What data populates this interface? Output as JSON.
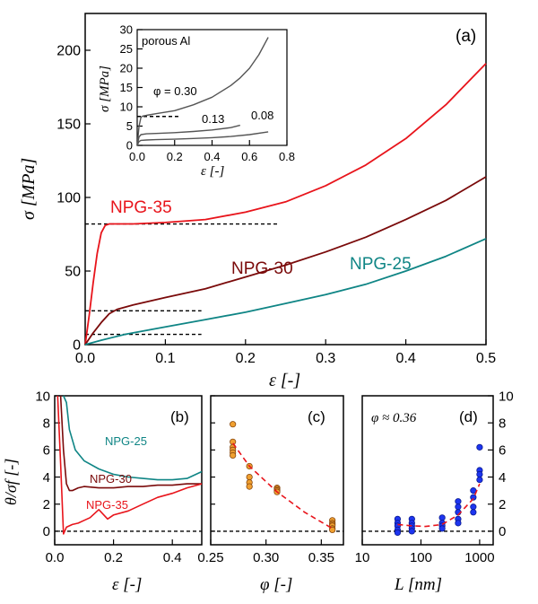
{
  "chart_data": [
    {
      "id": "a",
      "type": "line",
      "panel_label": "(a)",
      "xlabel": "ε [-]",
      "ylabel": "σ [MPa]",
      "xlim": [
        0,
        0.5
      ],
      "ylim": [
        0,
        225
      ],
      "xticks": [
        0.0,
        0.1,
        0.2,
        0.3,
        0.4,
        0.5
      ],
      "xtick_labels": [
        "0.0",
        "0.1",
        "0.2",
        "0.3",
        "0.4",
        "0.5"
      ],
      "yticks": [
        0,
        50,
        100,
        150,
        200
      ],
      "ytick_labels": [
        "0",
        "50",
        "100",
        "150",
        "200"
      ],
      "series": [
        {
          "name": "NPG-35",
          "color": "#e8141b",
          "x": [
            0.0,
            0.005,
            0.01,
            0.015,
            0.02,
            0.025,
            0.03,
            0.04,
            0.06,
            0.1,
            0.15,
            0.2,
            0.25,
            0.3,
            0.35,
            0.4,
            0.45,
            0.5
          ],
          "y": [
            0,
            20,
            42,
            62,
            76,
            81,
            82,
            82,
            82,
            83,
            85,
            90,
            97,
            108,
            122,
            140,
            163,
            191
          ]
        },
        {
          "name": "NPG-30",
          "color": "#7a0a0a",
          "x": [
            0.0,
            0.01,
            0.02,
            0.03,
            0.04,
            0.06,
            0.1,
            0.15,
            0.2,
            0.25,
            0.3,
            0.35,
            0.4,
            0.45,
            0.5
          ],
          "y": [
            0,
            8,
            15,
            21,
            24,
            27,
            32,
            38,
            46,
            54,
            63,
            73,
            85,
            98,
            114
          ]
        },
        {
          "name": "NPG-25",
          "color": "#0f8585",
          "x": [
            0.0,
            0.02,
            0.05,
            0.1,
            0.15,
            0.2,
            0.25,
            0.3,
            0.35,
            0.4,
            0.45,
            0.5
          ],
          "y": [
            0,
            3,
            7,
            12,
            17,
            22,
            28,
            34,
            41,
            50,
            60,
            72
          ]
        }
      ],
      "reference_lines": [
        {
          "y": 82,
          "x": [
            0.0,
            0.24
          ]
        },
        {
          "y": 23,
          "x": [
            0.0,
            0.145
          ]
        },
        {
          "y": 7,
          "x": [
            0.0,
            0.145
          ]
        }
      ],
      "annotations": [
        "NPG-35",
        "NPG-30",
        "NPG-25"
      ]
    },
    {
      "id": "inset",
      "type": "line",
      "title": "porous Al",
      "xlabel": "ε [-]",
      "ylabel": "σ [MPa]",
      "xlim": [
        0,
        0.8
      ],
      "ylim": [
        0,
        30
      ],
      "xticks": [
        0.0,
        0.2,
        0.4,
        0.6,
        0.8
      ],
      "xtick_labels": [
        "0.0",
        "0.2",
        "0.4",
        "0.6",
        "0.8"
      ],
      "yticks": [
        0,
        5,
        10,
        15,
        20,
        25,
        30
      ],
      "ytick_labels": [
        "0",
        "5",
        "10",
        "15",
        "20",
        "25",
        "30"
      ],
      "series": [
        {
          "label": "φ = 0.30",
          "color": "#555555",
          "x": [
            0.0,
            0.01,
            0.02,
            0.03,
            0.05,
            0.1,
            0.2,
            0.3,
            0.4,
            0.5,
            0.55,
            0.6,
            0.65,
            0.7
          ],
          "y": [
            0,
            5,
            7.3,
            7.6,
            7.8,
            8.2,
            9.0,
            10.5,
            12.5,
            15.5,
            17.5,
            20,
            23.5,
            28
          ]
        },
        {
          "label": "0.13",
          "color": "#555555",
          "x": [
            0.0,
            0.01,
            0.02,
            0.05,
            0.1,
            0.2,
            0.3,
            0.4,
            0.5,
            0.55
          ],
          "y": [
            0,
            2.2,
            2.8,
            3.0,
            3.1,
            3.3,
            3.6,
            4.0,
            4.6,
            5.2
          ]
        },
        {
          "label": "0.08",
          "color": "#555555",
          "x": [
            0.0,
            0.01,
            0.02,
            0.05,
            0.1,
            0.2,
            0.3,
            0.4,
            0.5,
            0.6,
            0.7
          ],
          "y": [
            0,
            1.0,
            1.3,
            1.4,
            1.5,
            1.6,
            1.8,
            2.0,
            2.3,
            2.8,
            3.5
          ]
        }
      ],
      "reference_lines": [
        {
          "y": 7.5,
          "x": [
            0.0,
            0.22
          ]
        }
      ],
      "annotations": [
        "φ = 0.30",
        "0.13",
        "0.08"
      ]
    },
    {
      "id": "b",
      "type": "line",
      "panel_label": "(b)",
      "xlabel": "ε [-]",
      "ylabel": "θ/σf [-]",
      "xlim": [
        0,
        0.5
      ],
      "ylim": [
        -1,
        10
      ],
      "xticks": [
        0.0,
        0.2,
        0.4
      ],
      "xtick_labels": [
        "0.0",
        "0.2",
        "0.4"
      ],
      "yticks": [
        0,
        2,
        4,
        6,
        8,
        10
      ],
      "ytick_labels": [
        "0",
        "2",
        "4",
        "6",
        "8",
        "10"
      ],
      "series": [
        {
          "name": "NPG-25",
          "color": "#0f8585",
          "x": [
            0.03,
            0.04,
            0.05,
            0.07,
            0.1,
            0.15,
            0.2,
            0.25,
            0.3,
            0.35,
            0.4,
            0.45,
            0.5
          ],
          "y": [
            10,
            9.5,
            7.5,
            6.0,
            5.2,
            4.6,
            4.2,
            4.0,
            3.9,
            3.8,
            3.8,
            3.9,
            4.4
          ]
        },
        {
          "name": "NPG-30",
          "color": "#7a0a0a",
          "x": [
            0.02,
            0.03,
            0.04,
            0.05,
            0.06,
            0.08,
            0.1,
            0.15,
            0.2,
            0.25,
            0.3,
            0.35,
            0.4,
            0.45,
            0.5
          ],
          "y": [
            10,
            6.0,
            3.5,
            3.0,
            3.0,
            3.2,
            3.3,
            3.2,
            3.2,
            3.3,
            3.3,
            3.4,
            3.4,
            3.5,
            3.5
          ]
        },
        {
          "name": "NPG-35",
          "color": "#e8141b",
          "x": [
            0.01,
            0.02,
            0.03,
            0.04,
            0.06,
            0.08,
            0.1,
            0.12,
            0.15,
            0.18,
            0.2,
            0.25,
            0.3,
            0.35,
            0.4,
            0.45,
            0.5
          ],
          "y": [
            10,
            5.0,
            -0.2,
            0.3,
            0.5,
            0.6,
            0.8,
            1.0,
            1.6,
            0.9,
            1.2,
            1.5,
            2.0,
            2.5,
            2.8,
            3.2,
            3.5
          ]
        }
      ],
      "reference_lines": [
        {
          "y": 0
        }
      ],
      "annotations": [
        "NPG-25",
        "NPG-30",
        "NPG-35"
      ]
    },
    {
      "id": "c",
      "type": "scatter",
      "panel_label": "(c)",
      "xlabel": "φ [-]",
      "xlim": [
        0.25,
        0.37
      ],
      "ylim": [
        -1,
        10
      ],
      "xticks": [
        0.25,
        0.3,
        0.35
      ],
      "xtick_labels": [
        "0.25",
        "0.30",
        "0.35"
      ],
      "points": {
        "color": "#f0a030",
        "x": [
          0.27,
          0.27,
          0.27,
          0.27,
          0.27,
          0.27,
          0.285,
          0.285,
          0.285,
          0.285,
          0.31,
          0.31,
          0.31,
          0.31,
          0.36,
          0.36,
          0.36,
          0.36,
          0.36,
          0.36
        ],
        "y": [
          7.9,
          6.6,
          6.2,
          6.0,
          5.8,
          5.6,
          4.8,
          4.0,
          3.6,
          3.3,
          3.2,
          3.1,
          3.0,
          2.9,
          0.8,
          0.6,
          0.5,
          0.4,
          0.2,
          0.1
        ]
      },
      "fit": {
        "color": "#e8141b",
        "x": [
          0.27,
          0.285,
          0.31,
          0.335,
          0.36
        ],
        "y": [
          6.5,
          4.8,
          2.9,
          1.4,
          0.2
        ]
      },
      "reference_lines": [
        {
          "y": 0
        }
      ]
    },
    {
      "id": "d",
      "type": "scatter",
      "panel_label": "(d)",
      "xlabel": "L [nm]",
      "xscale": "log",
      "xlim": [
        10,
        1700
      ],
      "ylim": [
        -1,
        10
      ],
      "xticks": [
        10,
        100,
        1000
      ],
      "xtick_labels": [
        "10",
        "100",
        "1000"
      ],
      "yticks": [
        0,
        2,
        4,
        6,
        8,
        10
      ],
      "ytick_labels": [
        "0",
        "2",
        "4",
        "6",
        "8",
        "10"
      ],
      "annotation": "φ ≈ 0.36",
      "points": {
        "color": "#1d35f0",
        "x": [
          40,
          40,
          40,
          40,
          40,
          70,
          70,
          70,
          70,
          70,
          230,
          230,
          230,
          230,
          430,
          430,
          430,
          430,
          430,
          780,
          780,
          780,
          780,
          1000,
          1000,
          1000,
          1000
        ],
        "y": [
          0.9,
          0.6,
          0.4,
          0.1,
          -0.1,
          0.9,
          0.6,
          0.4,
          0.2,
          0.0,
          1.0,
          0.6,
          0.4,
          0.2,
          2.2,
          1.8,
          1.4,
          0.9,
          0.6,
          3.0,
          2.5,
          1.8,
          1.4,
          6.2,
          4.5,
          4.2,
          3.8
        ]
      },
      "fit": {
        "color": "#e8141b",
        "x": [
          40,
          70,
          120,
          230,
          430,
          780,
          1000
        ],
        "y": [
          0.5,
          0.4,
          0.35,
          0.5,
          1.2,
          2.4,
          3.5
        ]
      },
      "reference_lines": [
        {
          "y": 0
        }
      ]
    }
  ]
}
